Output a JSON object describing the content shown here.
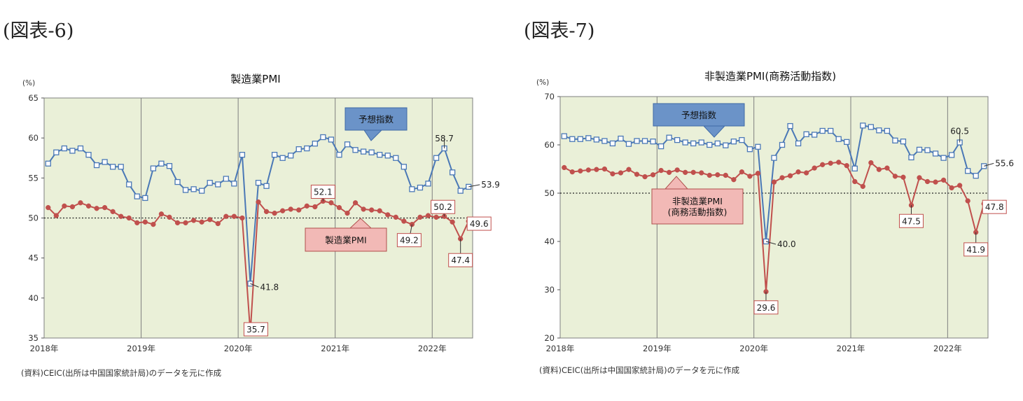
{
  "figures": [
    {
      "fig_label": "(図表-6)",
      "source_note": "(資料)CEIC(出所は中国国家統計局)のデータを元に作成",
      "chart_data": {
        "type": "line",
        "title": "製造業PMI",
        "unit": "(%)",
        "ylim": [
          35,
          65
        ],
        "yticks": [
          35,
          40,
          45,
          50,
          55,
          60,
          65
        ],
        "x_start": "2018-01",
        "year_labels": [
          "2018年",
          "2019年",
          "2020年",
          "2021年",
          "2022年"
        ],
        "reference_line": 50,
        "grid": "vertical year lines",
        "series": [
          {
            "name": "予想指数",
            "color": "#4a78b6",
            "marker": "open-square",
            "values": [
              56.8,
              58.2,
              58.7,
              58.4,
              58.7,
              57.9,
              56.6,
              57.0,
              56.4,
              56.4,
              54.2,
              52.7,
              52.5,
              56.2,
              56.8,
              56.5,
              54.5,
              53.5,
              53.6,
              53.4,
              54.4,
              54.2,
              54.9,
              54.3,
              57.9,
              41.8,
              54.4,
              54.0,
              57.9,
              57.5,
              57.8,
              58.6,
              58.7,
              59.3,
              60.1,
              59.8,
              57.9,
              59.2,
              58.5,
              58.3,
              58.2,
              57.9,
              57.8,
              57.5,
              56.4,
              53.6,
              53.8,
              54.3,
              57.5,
              58.7,
              55.7,
              53.4,
              53.9
            ]
          },
          {
            "name": "製造業PMI",
            "color": "#c0504d",
            "marker": "filled-circle",
            "values": [
              51.3,
              50.3,
              51.5,
              51.4,
              51.9,
              51.5,
              51.2,
              51.3,
              50.8,
              50.2,
              50.0,
              49.4,
              49.5,
              49.2,
              50.5,
              50.1,
              49.4,
              49.4,
              49.7,
              49.5,
              49.8,
              49.3,
              50.2,
              50.2,
              50.0,
              35.7,
              52.0,
              50.8,
              50.6,
              50.9,
              51.1,
              51.0,
              51.5,
              51.4,
              52.1,
              51.9,
              51.3,
              50.6,
              51.9,
              51.1,
              51.0,
              50.9,
              50.4,
              50.1,
              49.6,
              49.2,
              50.1,
              50.3,
              50.1,
              50.2,
              49.5,
              47.4,
              49.6
            ]
          }
        ],
        "annotations": [
          {
            "text": "41.8",
            "series": 0,
            "index": 25
          },
          {
            "text": "35.7",
            "series": 1,
            "index": 25
          },
          {
            "text": "52.1",
            "series": 1,
            "index": 34
          },
          {
            "text": "49.2",
            "series": 1,
            "index": 45
          },
          {
            "text": "58.7",
            "series": 0,
            "index": 49
          },
          {
            "text": "50.2",
            "series": 1,
            "index": 49
          },
          {
            "text": "47.4",
            "series": 1,
            "index": 51
          },
          {
            "text": "53.9",
            "series": 0,
            "index": 52
          },
          {
            "text": "49.6",
            "series": 1,
            "index": 52
          }
        ],
        "legend_callouts": [
          {
            "text": "予想指数",
            "series": 0
          },
          {
            "text": "製造業PMI",
            "series": 1
          }
        ]
      }
    },
    {
      "fig_label": "(図表-7)",
      "source_note": "(資料)CEIC(出所は中国国家統計局)のデータを元に作成",
      "chart_data": {
        "type": "line",
        "title": "非製造業PMI(商務活動指数)",
        "unit": "(%)",
        "ylim": [
          20,
          70
        ],
        "yticks": [
          20,
          30,
          40,
          50,
          60,
          70
        ],
        "x_start": "2018-01",
        "year_labels": [
          "2018年",
          "2019年",
          "2020年",
          "2021年",
          "2022年"
        ],
        "reference_line": 50,
        "grid": "vertical year lines",
        "series": [
          {
            "name": "予想指数",
            "color": "#4a78b6",
            "marker": "open-square",
            "values": [
              61.8,
              61.2,
              61.2,
              61.4,
              61.1,
              60.8,
              60.3,
              61.3,
              60.2,
              60.8,
              60.8,
              60.7,
              59.7,
              61.5,
              61.0,
              60.5,
              60.3,
              60.5,
              60.0,
              60.3,
              59.9,
              60.7,
              61.0,
              59.1,
              59.6,
              40.0,
              57.3,
              60.0,
              63.9,
              60.3,
              62.2,
              62.1,
              62.9,
              62.9,
              61.2,
              60.6,
              55.1,
              64.0,
              63.7,
              63.0,
              62.9,
              60.9,
              60.7,
              57.4,
              59.0,
              58.9,
              58.2,
              57.3,
              57.9,
              60.5,
              54.6,
              53.6,
              55.6
            ]
          },
          {
            "name": "非製造業PMI\n(商務活動指数)",
            "color": "#c0504d",
            "marker": "filled-circle",
            "values": [
              55.3,
              54.4,
              54.6,
              54.8,
              54.9,
              55.0,
              54.0,
              54.2,
              54.9,
              53.9,
              53.4,
              53.8,
              54.7,
              54.3,
              54.8,
              54.3,
              54.3,
              54.2,
              53.7,
              53.8,
              53.7,
              52.8,
              54.4,
              53.5,
              54.1,
              29.6,
              52.3,
              53.2,
              53.6,
              54.4,
              54.2,
              55.2,
              55.9,
              56.2,
              56.4,
              55.7,
              52.4,
              51.4,
              56.3,
              54.9,
              55.2,
              53.5,
              53.3,
              47.5,
              53.2,
              52.4,
              52.3,
              52.7,
              51.1,
              51.6,
              48.4,
              41.9,
              47.8
            ]
          }
        ],
        "annotations": [
          {
            "text": "40.0",
            "series": 0,
            "index": 25
          },
          {
            "text": "29.6",
            "series": 1,
            "index": 25
          },
          {
            "text": "47.5",
            "series": 1,
            "index": 43
          },
          {
            "text": "60.5",
            "series": 0,
            "index": 49
          },
          {
            "text": "55.6",
            "series": 0,
            "index": 52
          },
          {
            "text": "41.9",
            "series": 1,
            "index": 51
          },
          {
            "text": "47.8",
            "series": 1,
            "index": 52
          }
        ],
        "legend_callouts": [
          {
            "text": "予想指数",
            "series": 0
          },
          {
            "text": "非製造業PMI\n(商務活動指数)",
            "series": 1
          }
        ]
      }
    }
  ]
}
